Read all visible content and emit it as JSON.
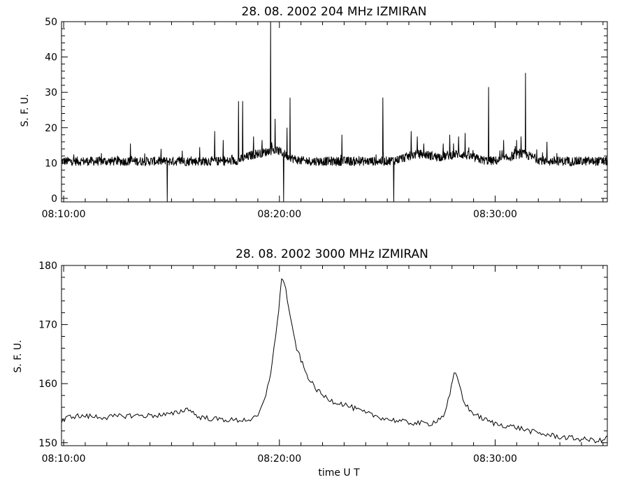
{
  "chart_data": [
    {
      "type": "line",
      "title": "28.  08.  2002    204 MHz     IZMIRAN",
      "ylabel": "S. F. U.",
      "xlabel": "",
      "x_ticks": [
        "08:10:00",
        "08:20:00",
        "08:30:00"
      ],
      "x_tick_minutes": [
        10,
        20,
        30
      ],
      "xlim_minutes": [
        9.9,
        35.2
      ],
      "ylim": [
        -1,
        50
      ],
      "y_ticks": [
        0,
        10,
        20,
        30,
        40,
        50
      ],
      "grid": false,
      "color": "#000000",
      "x_unit": "minutes after 08:00 UT",
      "baseline": 10.5,
      "spikes": [
        [
          13.1,
          15.5
        ],
        [
          14.8,
          -1
        ],
        [
          15.5,
          13.5
        ],
        [
          16.3,
          14.5
        ],
        [
          17.0,
          19
        ],
        [
          17.4,
          16.5
        ],
        [
          18.1,
          27.5
        ],
        [
          18.3,
          27.5
        ],
        [
          18.8,
          17.5
        ],
        [
          19.2,
          16.5
        ],
        [
          19.6,
          50
        ],
        [
          19.8,
          22.5
        ],
        [
          20.2,
          -1
        ],
        [
          20.35,
          20
        ],
        [
          20.5,
          28.5
        ],
        [
          22.9,
          18
        ],
        [
          24.8,
          28.5
        ],
        [
          25.3,
          -1
        ],
        [
          26.1,
          19
        ],
        [
          26.4,
          17.5
        ],
        [
          26.7,
          15.5
        ],
        [
          27.6,
          15.5
        ],
        [
          27.9,
          18
        ],
        [
          28.3,
          17.5
        ],
        [
          28.6,
          18.5
        ],
        [
          29.7,
          31.5
        ],
        [
          30.4,
          16.5
        ],
        [
          31.0,
          16.5
        ],
        [
          31.2,
          17.5
        ],
        [
          31.4,
          35.5
        ],
        [
          32.4,
          16
        ]
      ],
      "bumps": [
        [
          18.8,
          1.5,
          0.4
        ],
        [
          19.8,
          3,
          0.5
        ],
        [
          26.5,
          2,
          0.6
        ],
        [
          28.3,
          2,
          0.6
        ],
        [
          31.2,
          2,
          0.5
        ]
      ]
    },
    {
      "type": "line",
      "title": "28.  08.  2002    3000 MHz     IZMIRAN",
      "ylabel": "S. F. U.",
      "xlabel": "time  U T",
      "x_ticks": [
        "08:10:00",
        "08:20:00",
        "08:30:00"
      ],
      "x_tick_minutes": [
        10,
        20,
        30
      ],
      "xlim_minutes": [
        9.9,
        35.2
      ],
      "ylim": [
        149.5,
        180
      ],
      "y_ticks": [
        150,
        160,
        170,
        180
      ],
      "grid": false,
      "color": "#000000",
      "x_unit": "minutes after 08:00 UT",
      "x": [
        9.9,
        10.3,
        11.0,
        12.0,
        13.0,
        14.0,
        15.0,
        15.8,
        16.2,
        17.0,
        18.0,
        18.8,
        19.0,
        19.3,
        19.6,
        19.9,
        20.1,
        20.3,
        20.5,
        20.8,
        21.2,
        21.6,
        22.0,
        22.5,
        23.0,
        24.0,
        25.0,
        26.0,
        27.0,
        27.6,
        27.9,
        28.1,
        28.3,
        28.5,
        28.8,
        29.2,
        29.6,
        30.0,
        31.0,
        32.0,
        33.0,
        34.0,
        35.0,
        35.2
      ],
      "y": [
        153.5,
        154.5,
        154.5,
        154.3,
        154.6,
        154.6,
        154.8,
        155.8,
        154.4,
        154.0,
        153.8,
        154.0,
        154.5,
        157.0,
        162.0,
        170.0,
        178.0,
        176.0,
        171.0,
        166.0,
        162.0,
        159.5,
        158.0,
        157.0,
        156.5,
        155.0,
        154.0,
        153.4,
        153.2,
        154.5,
        158.0,
        161.8,
        160.5,
        157.5,
        155.5,
        154.5,
        153.8,
        153.2,
        152.6,
        151.6,
        151.0,
        150.6,
        150.3,
        151.2
      ]
    }
  ]
}
